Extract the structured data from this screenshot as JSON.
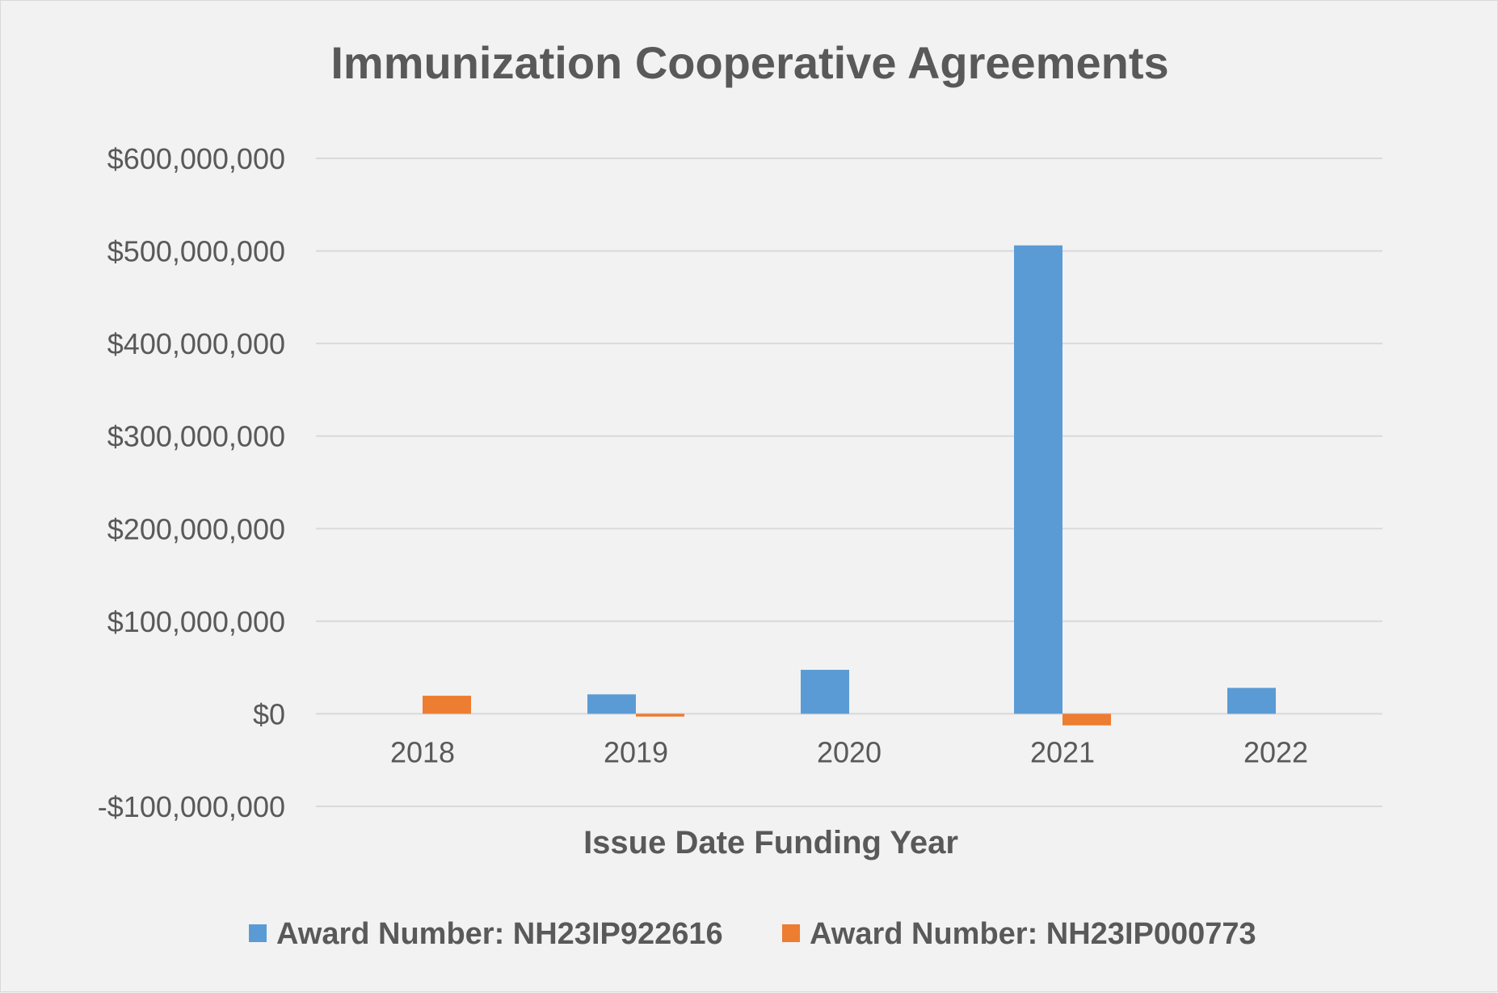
{
  "chart_data": {
    "type": "bar",
    "title": "Immunization Cooperative Agreements",
    "xlabel": "Issue Date Funding Year",
    "ylabel": "",
    "categories": [
      "2018",
      "2019",
      "2020",
      "2021",
      "2022"
    ],
    "series": [
      {
        "name": "Award Number: NH23IP922616",
        "color": "#5b9bd5",
        "values": [
          0,
          21000000,
          47500000,
          506000000,
          28000000
        ]
      },
      {
        "name": "Award Number: NH23IP000773",
        "color": "#ed7d31",
        "values": [
          19500000,
          -3000000,
          0,
          -12500000,
          0
        ]
      }
    ],
    "ylim": [
      -100000000,
      600000000
    ],
    "yticks": [
      600000000,
      500000000,
      400000000,
      300000000,
      200000000,
      100000000,
      0,
      -100000000
    ],
    "ytick_labels": [
      "$600,000,000",
      "$500,000,000",
      "$400,000,000",
      "$300,000,000",
      "$200,000,000",
      "$100,000,000",
      "$0",
      "-$100,000,000"
    ],
    "grid": true,
    "legend_position": "bottom",
    "colors": {
      "background": "#f2f2f2",
      "gridline": "#d9d9d9",
      "text": "#595959"
    }
  }
}
